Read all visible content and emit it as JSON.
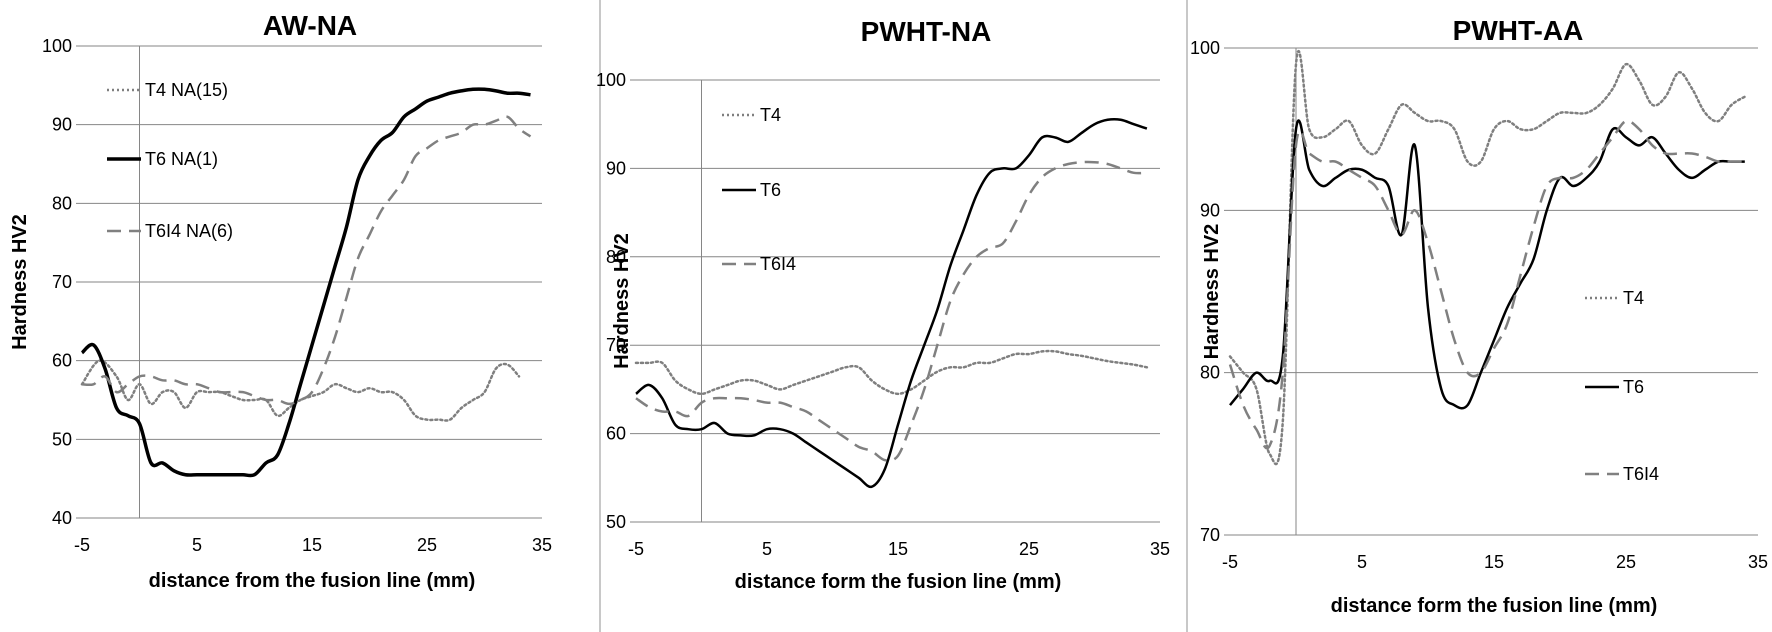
{
  "chart_data": [
    {
      "type": "line",
      "title": "AW-NA",
      "xlabel": "distance from the fusion line (mm)",
      "ylabel": "Hardness HV2",
      "xlim": [
        -5,
        35
      ],
      "ylim": [
        40,
        100
      ],
      "xticks": [
        "-5",
        "5",
        "15",
        "25",
        "35"
      ],
      "yticks": [
        "40",
        "50",
        "60",
        "70",
        "80",
        "90",
        "100"
      ],
      "grid": true,
      "legend_position": "upper-left",
      "series": [
        {
          "name": "T4 NA(15)",
          "style": "dotted",
          "color": "#7f7f7f",
          "x": [
            -5,
            -3.5,
            -2,
            -1,
            0,
            1,
            2,
            3,
            4,
            5,
            6,
            7,
            8,
            9,
            10,
            11,
            12,
            13,
            14,
            15,
            16,
            17,
            18,
            19,
            20,
            21,
            22,
            23,
            24,
            25,
            26,
            27,
            28,
            29,
            30,
            31,
            32,
            33
          ],
          "y": [
            57,
            60,
            58,
            55,
            57,
            54.5,
            56,
            56,
            54,
            56,
            56,
            56,
            55.5,
            55,
            55,
            55,
            53,
            54,
            55,
            55.5,
            56,
            57,
            56.5,
            56,
            56.5,
            56,
            56,
            55,
            53,
            52.5,
            52.5,
            52.5,
            54,
            55,
            56,
            59,
            59.5,
            58
          ]
        },
        {
          "name": "T6 NA(1)",
          "style": "solid-thick",
          "color": "#000000",
          "x": [
            -5,
            -4,
            -3,
            -2,
            -1,
            0,
            1,
            2,
            3,
            4,
            5,
            6,
            7,
            8,
            9,
            10,
            11,
            12,
            13,
            14,
            15,
            16,
            17,
            18,
            19,
            20,
            21,
            22,
            23,
            24,
            25,
            26,
            27,
            28,
            29,
            30,
            31,
            32,
            33,
            34
          ],
          "y": [
            61,
            62,
            59,
            54,
            53,
            52,
            47,
            47,
            46,
            45.5,
            45.5,
            45.5,
            45.5,
            45.5,
            45.5,
            45.5,
            47,
            48,
            52,
            57,
            62,
            67,
            72,
            77,
            83,
            86,
            88,
            89,
            91,
            92,
            93,
            93.5,
            94,
            94.3,
            94.5,
            94.5,
            94.3,
            94,
            94,
            93.8
          ]
        },
        {
          "name": "T6I4 NA(6)",
          "style": "dashed",
          "color": "#808080",
          "x": [
            -5,
            -4,
            -3,
            -2,
            -1,
            0,
            1,
            2,
            3,
            4,
            5,
            6,
            7,
            8,
            9,
            10,
            11,
            12,
            13,
            14,
            15,
            16,
            17,
            18,
            19,
            20,
            21,
            22,
            23,
            24,
            25,
            26,
            27,
            28,
            29,
            30,
            31,
            32,
            33,
            34
          ],
          "y": [
            57,
            57,
            58,
            56,
            57,
            58,
            58,
            57.5,
            57.5,
            57,
            57,
            56.5,
            56,
            56,
            56,
            55.5,
            55,
            55,
            54.5,
            55,
            56,
            59,
            63,
            68,
            73,
            76,
            79,
            81,
            83,
            86,
            87,
            88,
            88.5,
            89,
            90,
            90,
            90.5,
            91,
            89.5,
            88.5
          ]
        }
      ]
    },
    {
      "type": "line",
      "title": "PWHT-NA",
      "xlabel": "distance form the fusion line (mm)",
      "ylabel": "Hardness HV2",
      "xlim": [
        -5,
        35
      ],
      "ylim": [
        50,
        100
      ],
      "xticks": [
        "-5",
        "5",
        "15",
        "25",
        "35"
      ],
      "yticks": [
        "50",
        "60",
        "70",
        "80",
        "90",
        "100"
      ],
      "grid": true,
      "legend_position": "upper-left",
      "series": [
        {
          "name": "T4",
          "style": "dotted",
          "color": "#7f7f7f",
          "x": [
            -5,
            -4,
            -3,
            -2,
            -1,
            0,
            1,
            2,
            3,
            4,
            5,
            6,
            7,
            8,
            9,
            10,
            11,
            12,
            13,
            14,
            15,
            16,
            17,
            18,
            19,
            20,
            21,
            22,
            23,
            24,
            25,
            26,
            27,
            28,
            29,
            30,
            31,
            32,
            33,
            34
          ],
          "y": [
            68,
            68,
            68,
            66,
            65,
            64.5,
            65,
            65.5,
            66,
            66,
            65.5,
            65,
            65.5,
            66,
            66.5,
            67,
            67.5,
            67.5,
            66,
            65,
            64.5,
            65,
            66,
            67,
            67.5,
            67.5,
            68,
            68,
            68.5,
            69,
            69,
            69.3,
            69.3,
            69,
            68.8,
            68.5,
            68.2,
            68,
            67.8,
            67.5
          ]
        },
        {
          "name": "T6",
          "style": "solid",
          "color": "#000000",
          "x": [
            -5,
            -4,
            -3,
            -2,
            -1,
            0,
            1,
            2,
            3,
            4,
            5,
            6,
            7,
            8,
            9,
            10,
            11,
            12,
            13,
            14,
            15,
            16,
            17,
            18,
            19,
            20,
            21,
            22,
            23,
            24,
            25,
            26,
            27,
            28,
            29,
            30,
            31,
            32,
            33,
            34
          ],
          "y": [
            64.5,
            65.5,
            64,
            61,
            60.5,
            60.5,
            61.2,
            60,
            59.8,
            59.8,
            60.5,
            60.5,
            60,
            59,
            58,
            57,
            56,
            55,
            54,
            56,
            61,
            66,
            70,
            74,
            79,
            83,
            87,
            89.5,
            90,
            90,
            91.5,
            93.5,
            93.5,
            93,
            94,
            95,
            95.5,
            95.5,
            95,
            94.5
          ]
        },
        {
          "name": "T6I4",
          "style": "dashed",
          "color": "#808080",
          "x": [
            -5,
            -4,
            -3,
            -2,
            -1,
            0,
            1,
            2,
            3,
            4,
            5,
            6,
            7,
            8,
            9,
            10,
            11,
            12,
            13,
            14,
            15,
            16,
            17,
            18,
            19,
            20,
            21,
            22,
            23,
            24,
            25,
            26,
            27,
            28,
            29,
            30,
            31,
            32,
            33,
            34
          ],
          "y": [
            64,
            63,
            62.5,
            62.5,
            62,
            63.5,
            64,
            64,
            64,
            63.8,
            63.5,
            63.5,
            63,
            62.5,
            61.5,
            60.5,
            59.5,
            58.5,
            58,
            57,
            57.5,
            61,
            65,
            70,
            75,
            78,
            80,
            81,
            81.5,
            84,
            87,
            89,
            90,
            90.5,
            90.7,
            90.7,
            90.5,
            90,
            89.5,
            89.5
          ]
        }
      ]
    },
    {
      "type": "line",
      "title": "PWHT-AA",
      "xlabel": "distance form the fusion line (mm)",
      "ylabel": "Hardness HV2",
      "xlim": [
        -5,
        35
      ],
      "ylim": [
        70,
        100
      ],
      "xticks": [
        "-5",
        "5",
        "15",
        "25",
        "35"
      ],
      "yticks": [
        "70",
        "80",
        "90",
        "100"
      ],
      "grid": true,
      "legend_position": "center-right",
      "series": [
        {
          "name": "T4",
          "style": "dotted",
          "color": "#7f7f7f",
          "x": [
            -5,
            -4,
            -3,
            -2,
            -1,
            0,
            1,
            2,
            3,
            4,
            5,
            6,
            7,
            8,
            9,
            10,
            11,
            12,
            13,
            14,
            15,
            16,
            17,
            18,
            19,
            20,
            21,
            22,
            23,
            24,
            25,
            26,
            27,
            28,
            29,
            30,
            31,
            32,
            33,
            34
          ],
          "y": [
            81,
            80,
            79,
            75,
            77,
            99,
            95,
            94.5,
            95,
            95.5,
            94,
            93.5,
            95,
            96.5,
            96,
            95.5,
            95.5,
            95,
            93,
            93,
            95,
            95.5,
            95,
            95,
            95.5,
            96,
            96,
            96,
            96.5,
            97.5,
            99,
            98,
            96.5,
            97,
            98.5,
            97.5,
            96,
            95.5,
            96.5,
            97
          ]
        },
        {
          "name": "T6",
          "style": "solid",
          "color": "#000000",
          "x": [
            -5,
            -4,
            -3,
            -2,
            -1,
            0,
            1,
            2,
            3,
            4,
            5,
            6,
            7,
            8,
            9,
            10,
            11,
            12,
            13,
            14,
            15,
            16,
            17,
            18,
            19,
            20,
            21,
            22,
            23,
            24,
            25,
            26,
            27,
            28,
            29,
            30,
            31,
            32,
            33,
            34
          ],
          "y": [
            78,
            79,
            80,
            79.5,
            81,
            95,
            92.5,
            91.5,
            92,
            92.5,
            92.5,
            92,
            91.5,
            88.5,
            94,
            84,
            79,
            78,
            78,
            80,
            82,
            84,
            85.5,
            87,
            90,
            92,
            91.5,
            92,
            93,
            95,
            94.5,
            94,
            94.5,
            93.5,
            92.5,
            92,
            92.5,
            93,
            93,
            93
          ]
        },
        {
          "name": "T6I4",
          "style": "dashed",
          "color": "#808080",
          "x": [
            -5,
            -4,
            -3,
            -2,
            -1,
            0,
            1,
            2,
            3,
            4,
            5,
            6,
            7,
            8,
            9,
            10,
            11,
            12,
            13,
            14,
            15,
            16,
            17,
            18,
            19,
            20,
            21,
            22,
            23,
            24,
            25,
            26,
            27,
            28,
            29,
            30,
            31,
            32,
            33,
            34
          ],
          "y": [
            80.5,
            78,
            76.5,
            75.5,
            80,
            94,
            93.5,
            93,
            93,
            92.5,
            92,
            91.5,
            90,
            88.5,
            90,
            88,
            85,
            82,
            80,
            80,
            81.5,
            83,
            86,
            89,
            91.5,
            92,
            92,
            92.5,
            93.5,
            94.5,
            95.5,
            95,
            94,
            93.5,
            93.5,
            93.5,
            93.3,
            93,
            93,
            93
          ]
        }
      ]
    }
  ]
}
